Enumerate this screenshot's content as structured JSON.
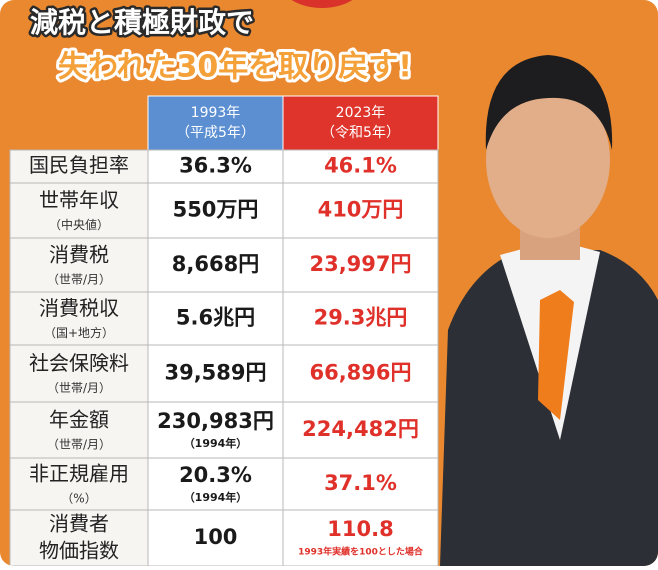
{
  "header": {
    "line1": "減税と積極財政で",
    "line2": "失われた30年を取り戻す!"
  },
  "table": {
    "columns": [
      {
        "year": "1993年",
        "era": "（平成5年）"
      },
      {
        "year": "2023年",
        "era": "（令和5年）"
      }
    ],
    "rows": [
      {
        "label": "国民負担率",
        "old": "36.3%",
        "new": "46.1%"
      },
      {
        "label": "世帯年収",
        "sublabel": "（中央値）",
        "old": "550万円",
        "new": "410万円"
      },
      {
        "label": "消費税",
        "sublabel": "（世帯/月）",
        "old": "8,668円",
        "new": "23,997円"
      },
      {
        "label": "消費税収",
        "sublabel": "（国+地方）",
        "old": "5.6兆円",
        "new": "29.3兆円"
      },
      {
        "label": "社会保険料",
        "sublabel": "（世帯/月）",
        "old": "39,589円",
        "new": "66,896円"
      },
      {
        "label": "年金額",
        "sublabel": "（世帯/月）",
        "old": "230,983円",
        "old_note": "（1994年）",
        "new": "224,482円"
      },
      {
        "label": "非正規雇用",
        "sublabel": "（%）",
        "old": "20.3%",
        "old_note": "（1994年）",
        "new": "37.1%"
      },
      {
        "label": "消費者",
        "label2": "物価指数",
        "old": "100",
        "new": "110.8",
        "new_note": "1993年実績を100とした場合"
      }
    ]
  }
}
